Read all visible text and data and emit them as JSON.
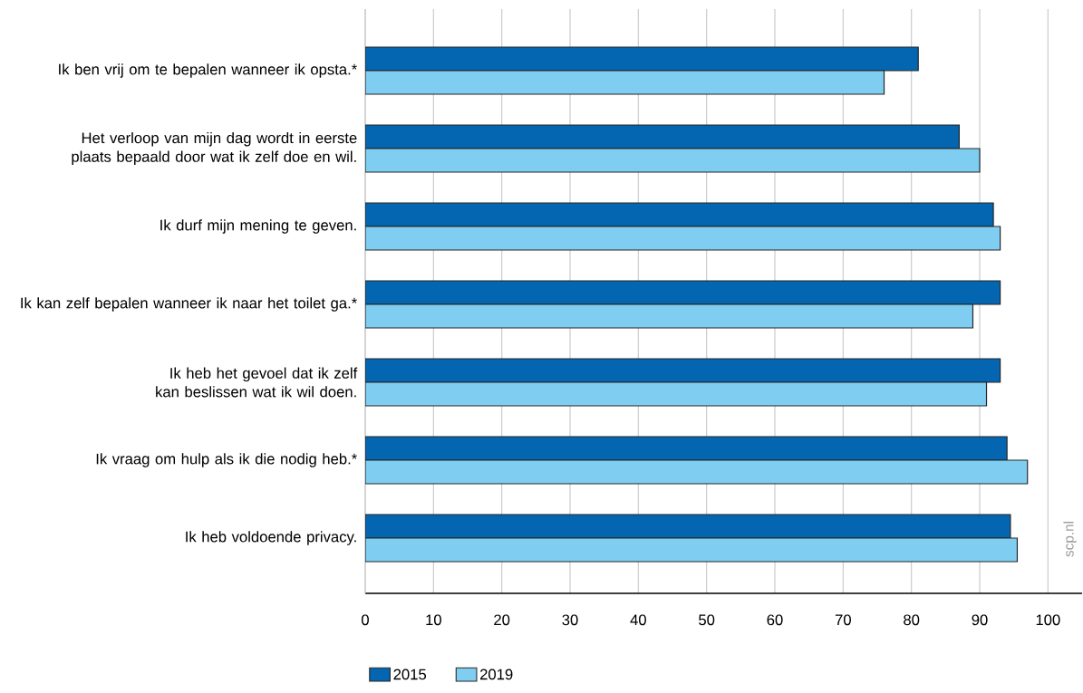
{
  "chart_data": {
    "type": "bar",
    "orientation": "horizontal",
    "categories": [
      "Ik ben vrij om te bepalen wanneer ik opsta.*",
      "Het verloop van mijn dag wordt in eerste plaats bepaald door wat ik zelf doe en wil.",
      "Ik durf mijn mening te geven.",
      "Ik kan zelf bepalen wanneer ik naar het toilet ga.*",
      "Ik heb het gevoel dat ik zelf kan beslissen wat ik wil doen.",
      "Ik vraag om hulp als ik die nodig heb.*",
      "Ik heb voldoende privacy."
    ],
    "series": [
      {
        "name": "2015",
        "color": "#0466b1",
        "values": [
          81,
          87,
          92,
          93,
          93,
          94,
          94.5
        ]
      },
      {
        "name": "2019",
        "color": "#7fcef2",
        "values": [
          76,
          90,
          93,
          89,
          91,
          97,
          95.5
        ]
      }
    ],
    "xlim": [
      0,
      105
    ],
    "xticks": [
      0,
      10,
      20,
      30,
      40,
      50,
      60,
      70,
      80,
      90,
      100
    ],
    "grid": "x",
    "legend": "bottom left",
    "annotations": [
      "scp.nl"
    ]
  }
}
